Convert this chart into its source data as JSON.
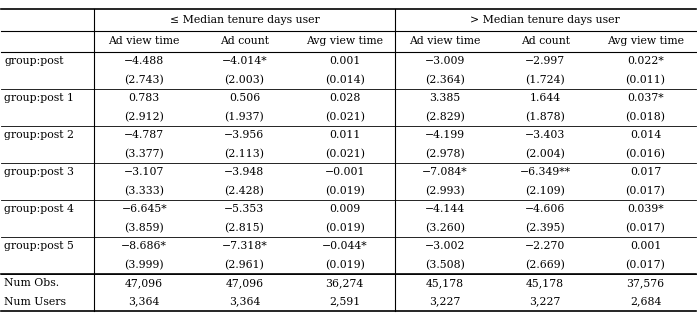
{
  "col_groups": [
    {
      "label": "≤ Median tenure days user",
      "cols": [
        "Ad view time",
        "Ad count",
        "Avg view time"
      ]
    },
    {
      "label": "> Median tenure days user",
      "cols": [
        "Ad view time",
        "Ad count",
        "Avg view time"
      ]
    }
  ],
  "rows": [
    [
      "−4.488",
      "−4.014*",
      "0.001",
      "−3.009",
      "−2.997",
      "0.022*"
    ],
    [
      "(2.743)",
      "(2.003)",
      "(0.014)",
      "(2.364)",
      "(1.724)",
      "(0.011)"
    ],
    [
      "0.783",
      "0.506",
      "0.028",
      "3.385",
      "1.644",
      "0.037*"
    ],
    [
      "(2.912)",
      "(1.937)",
      "(0.021)",
      "(2.829)",
      "(1.878)",
      "(0.018)"
    ],
    [
      "−4.787",
      "−3.956",
      "0.011",
      "−4.199",
      "−3.403",
      "0.014"
    ],
    [
      "(3.377)",
      "(2.113)",
      "(0.021)",
      "(2.978)",
      "(2.004)",
      "(0.016)"
    ],
    [
      "−3.107",
      "−3.948",
      "−0.001",
      "−7.084*",
      "−6.349**",
      "0.017"
    ],
    [
      "(3.333)",
      "(2.428)",
      "(0.019)",
      "(2.993)",
      "(2.109)",
      "(0.017)"
    ],
    [
      "−6.645*",
      "−5.353",
      "0.009",
      "−4.144",
      "−4.606",
      "0.039*"
    ],
    [
      "(3.859)",
      "(2.815)",
      "(0.019)",
      "(3.260)",
      "(2.395)",
      "(0.017)"
    ],
    [
      "−8.686*",
      "−7.318*",
      "−0.044*",
      "−3.002",
      "−2.270",
      "0.001"
    ],
    [
      "(3.999)",
      "(2.961)",
      "(0.019)",
      "(3.508)",
      "(2.669)",
      "(0.017)"
    ],
    [
      "47,096",
      "47,096",
      "36,274",
      "45,178",
      "45,178",
      "37,576"
    ],
    [
      "3,364",
      "3,364",
      "2,591",
      "3,227",
      "3,227",
      "2,684"
    ]
  ],
  "row_labels_map": {
    "0": "group:post",
    "2": "group:post 1",
    "4": "group:post 2",
    "6": "group:post 3",
    "8": "group:post 4",
    "10": "group:post 5",
    "12": "Num Obs.",
    "13": "Num Users"
  },
  "font_size": 7.8,
  "bg_color": "white"
}
